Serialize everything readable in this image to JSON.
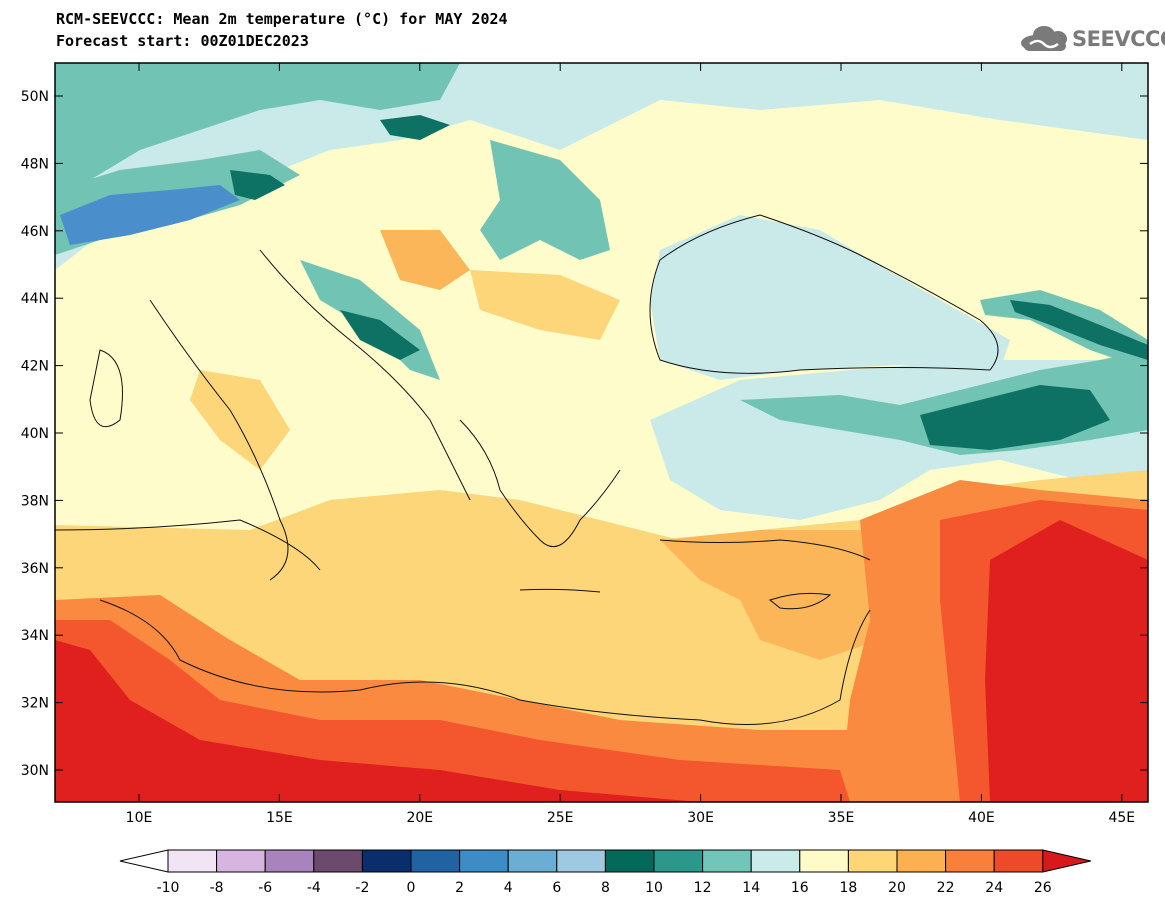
{
  "title_line1": "RCM-SEEVCCC: Mean 2m temperature (°C) for MAY 2024",
  "title_line2": "Forecast start: 00Z01DEC2023",
  "logo_text": "SEEVCCC",
  "lat_labels": [
    "50N",
    "48N",
    "46N",
    "44N",
    "42N",
    "40N",
    "38N",
    "36N",
    "34N",
    "32N",
    "30N"
  ],
  "lon_labels": [
    "10E",
    "15E",
    "20E",
    "25E",
    "30E",
    "35E",
    "40E",
    "45E"
  ],
  "colorbar": {
    "tick_labels": [
      "-10",
      "-8",
      "-6",
      "-4",
      "-2",
      "0",
      "2",
      "4",
      "6",
      "8",
      "10",
      "12",
      "14",
      "16",
      "18",
      "20",
      "22",
      "24",
      "26"
    ],
    "colors": [
      "#f1e4f4",
      "#d6b5e0",
      "#a983bd",
      "#6b4a6e",
      "#0a2e6b",
      "#1f63a3",
      "#3d8cc6",
      "#6aaed6",
      "#9ecae1",
      "#04695a",
      "#2c978b",
      "#72c6b9",
      "#c9ecea",
      "#fffbc9",
      "#fed675",
      "#fcb050",
      "#fa7f3b",
      "#ed4a2a"
    ],
    "under_color": "#ffffff",
    "over_color": "#d7191c"
  },
  "map_colors": {
    "hot": "#e0201f",
    "warm": "#f4572d",
    "orange": "#f98a40",
    "light_orange": "#fbb65a",
    "yellow": "#fdd67a",
    "pale": "#fffccb",
    "pale_cyan": "#c9eae8",
    "teal": "#71c3b4",
    "dark_teal": "#0d7164",
    "blue": "#4a8fcb"
  }
}
